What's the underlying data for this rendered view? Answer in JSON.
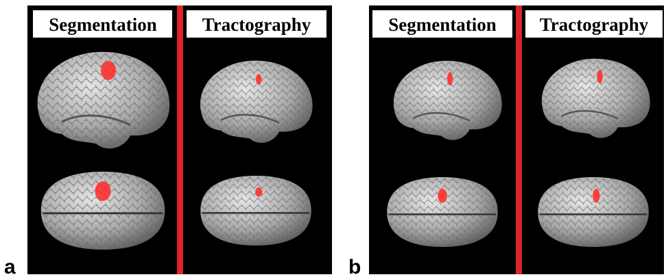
{
  "panels": [
    {
      "label": "a",
      "headers": [
        "Segmentation",
        "Tractography"
      ]
    },
    {
      "label": "b",
      "headers": [
        "Segmentation",
        "Tractography"
      ]
    }
  ]
}
